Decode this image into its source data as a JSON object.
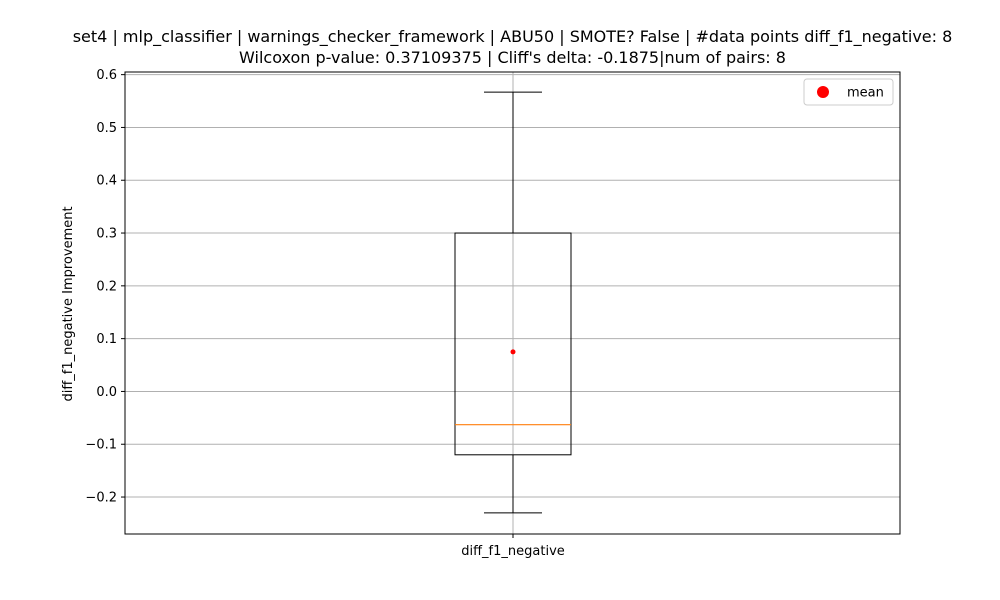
{
  "chart_data": {
    "type": "box",
    "title_line1": "set4 | mlp_classifier | warnings_checker_framework | ABU50 | SMOTE? False | #data points diff_f1_negative: 8",
    "title_line2": "Wilcoxon p-value: 0.37109375 | Cliff's delta: -0.1875|num of pairs: 8",
    "xlabel": "",
    "ylabel": "diff_f1_negative Improvement",
    "categories": [
      "diff_f1_negative"
    ],
    "box": {
      "whisker_low": -0.23,
      "q1": -0.12,
      "median": -0.063,
      "q3": 0.3,
      "whisker_high": 0.567,
      "mean": 0.075
    },
    "ylim": [
      -0.27,
      0.605
    ],
    "yticks": [
      -0.2,
      -0.1,
      0.0,
      0.1,
      0.2,
      0.3,
      0.4,
      0.5,
      0.6
    ],
    "ytick_labels": [
      "−0.2",
      "−0.1",
      "0.0",
      "0.1",
      "0.2",
      "0.3",
      "0.4",
      "0.5",
      "0.6"
    ],
    "grid": true,
    "legend": {
      "position": "top-right",
      "entries": [
        "mean"
      ]
    },
    "colors": {
      "median": "#ff7f0e",
      "mean": "#ff0000",
      "box": "#000000",
      "grid": "#b0b0b0"
    }
  }
}
